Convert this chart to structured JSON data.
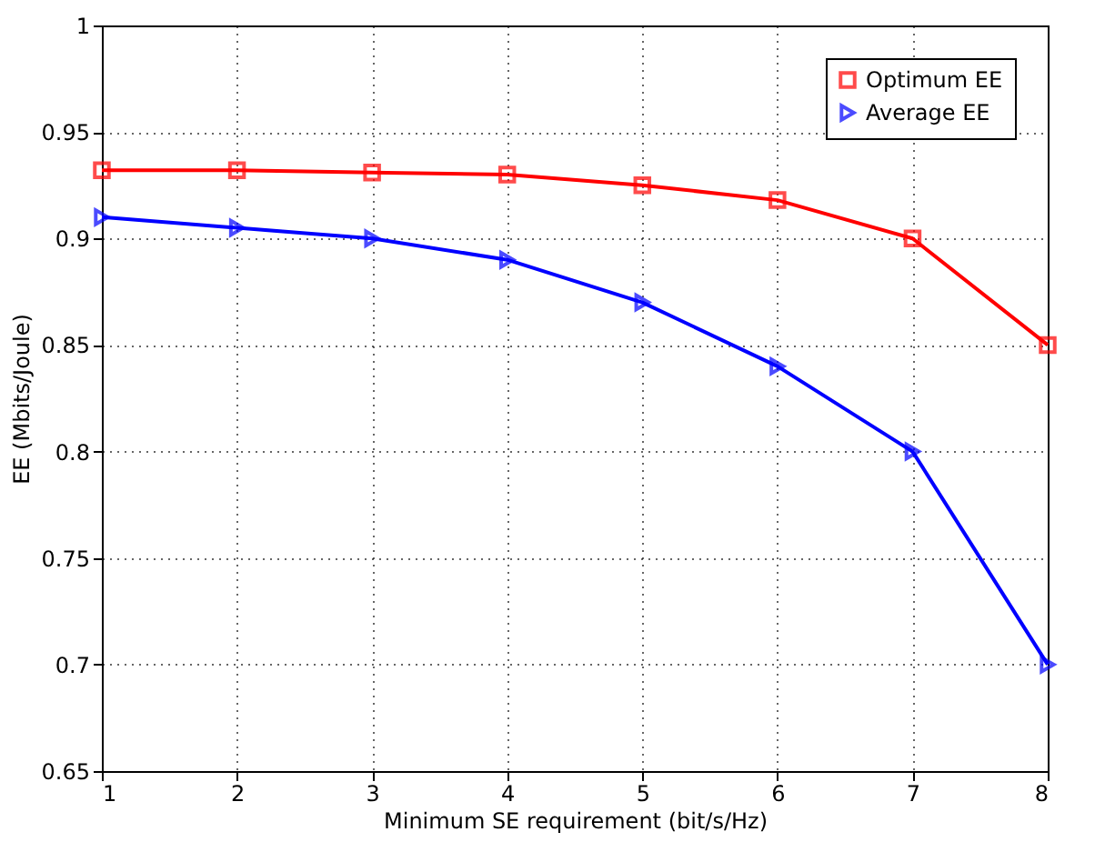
{
  "chart_data": {
    "type": "line",
    "xlabel": "Minimum SE requirement (bit/s/Hz)",
    "ylabel": "EE (Mbits/Joule)",
    "x": [
      1,
      2,
      3,
      4,
      5,
      6,
      7,
      8
    ],
    "series": [
      {
        "name": "Optimum EE",
        "color": "#ff0000",
        "marker": "square",
        "values": [
          0.932,
          0.932,
          0.931,
          0.93,
          0.925,
          0.918,
          0.9,
          0.85
        ]
      },
      {
        "name": "Average EE",
        "color": "#0000ff",
        "marker": "triangle",
        "values": [
          0.91,
          0.905,
          0.9,
          0.89,
          0.87,
          0.84,
          0.8,
          0.7
        ]
      }
    ],
    "xlim": [
      1,
      8
    ],
    "xticks": [
      1,
      2,
      3,
      4,
      5,
      6,
      7,
      8
    ],
    "ylim": [
      0.65,
      1
    ],
    "yticks": [
      0.65,
      0.7,
      0.75,
      0.8,
      0.85,
      0.9,
      0.95,
      1
    ],
    "grid": true,
    "legend": "top right",
    "line_style": "solid"
  }
}
